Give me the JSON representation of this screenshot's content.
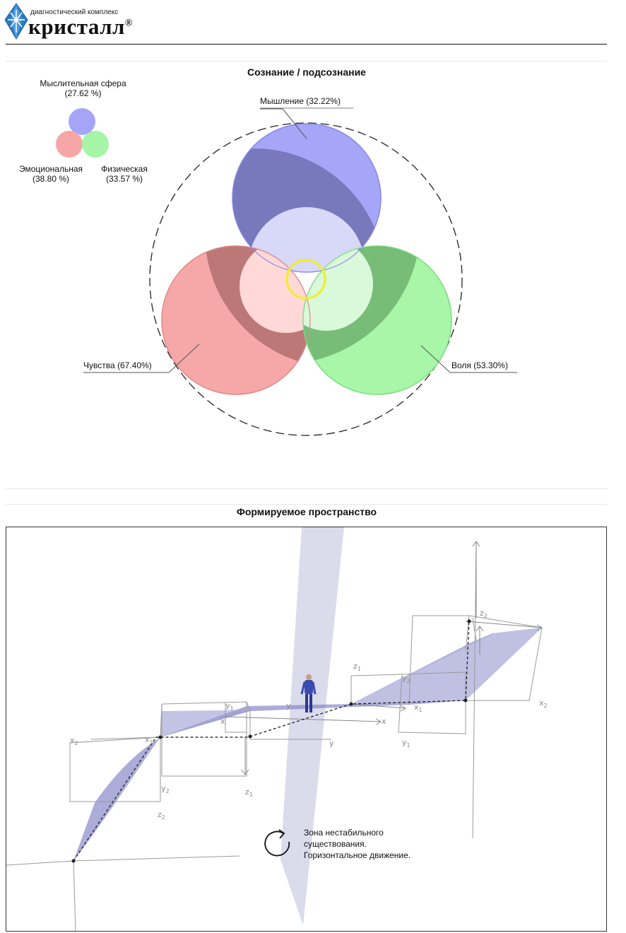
{
  "header": {
    "brand_sub": "диагностический комплекс",
    "brand_name": "кристалл",
    "brand_mark": "®"
  },
  "section1": {
    "title": "Сознание / подсознание",
    "legend": {
      "mental": {
        "label": "Мыслительная сфера",
        "value": "(27.62 %)"
      },
      "emotional": {
        "label": "Эмоциональная",
        "value": "(38.80 %)"
      },
      "physical": {
        "label": "Физическая",
        "value": "(33.57 %)"
      }
    },
    "labels": {
      "thinking": "Мышление (32.22%)",
      "feelings": "Чувства (67.40%)",
      "will": "Воля (53.30%)"
    }
  },
  "section2": {
    "title": "Формируемое пространство",
    "zone_text": [
      "Зона нестабильного",
      "существования.",
      "Горизонтальное движение."
    ],
    "axis_labels": {
      "x": "x",
      "y": "y",
      "z": "z",
      "sub1": "1",
      "sub2": "2"
    }
  },
  "colors": {
    "mental": "#a5a5f7",
    "emotional": "#f6a6a6",
    "physical": "#a6f4a6",
    "ring": "#eef020",
    "plane": "#7f80c4"
  }
}
